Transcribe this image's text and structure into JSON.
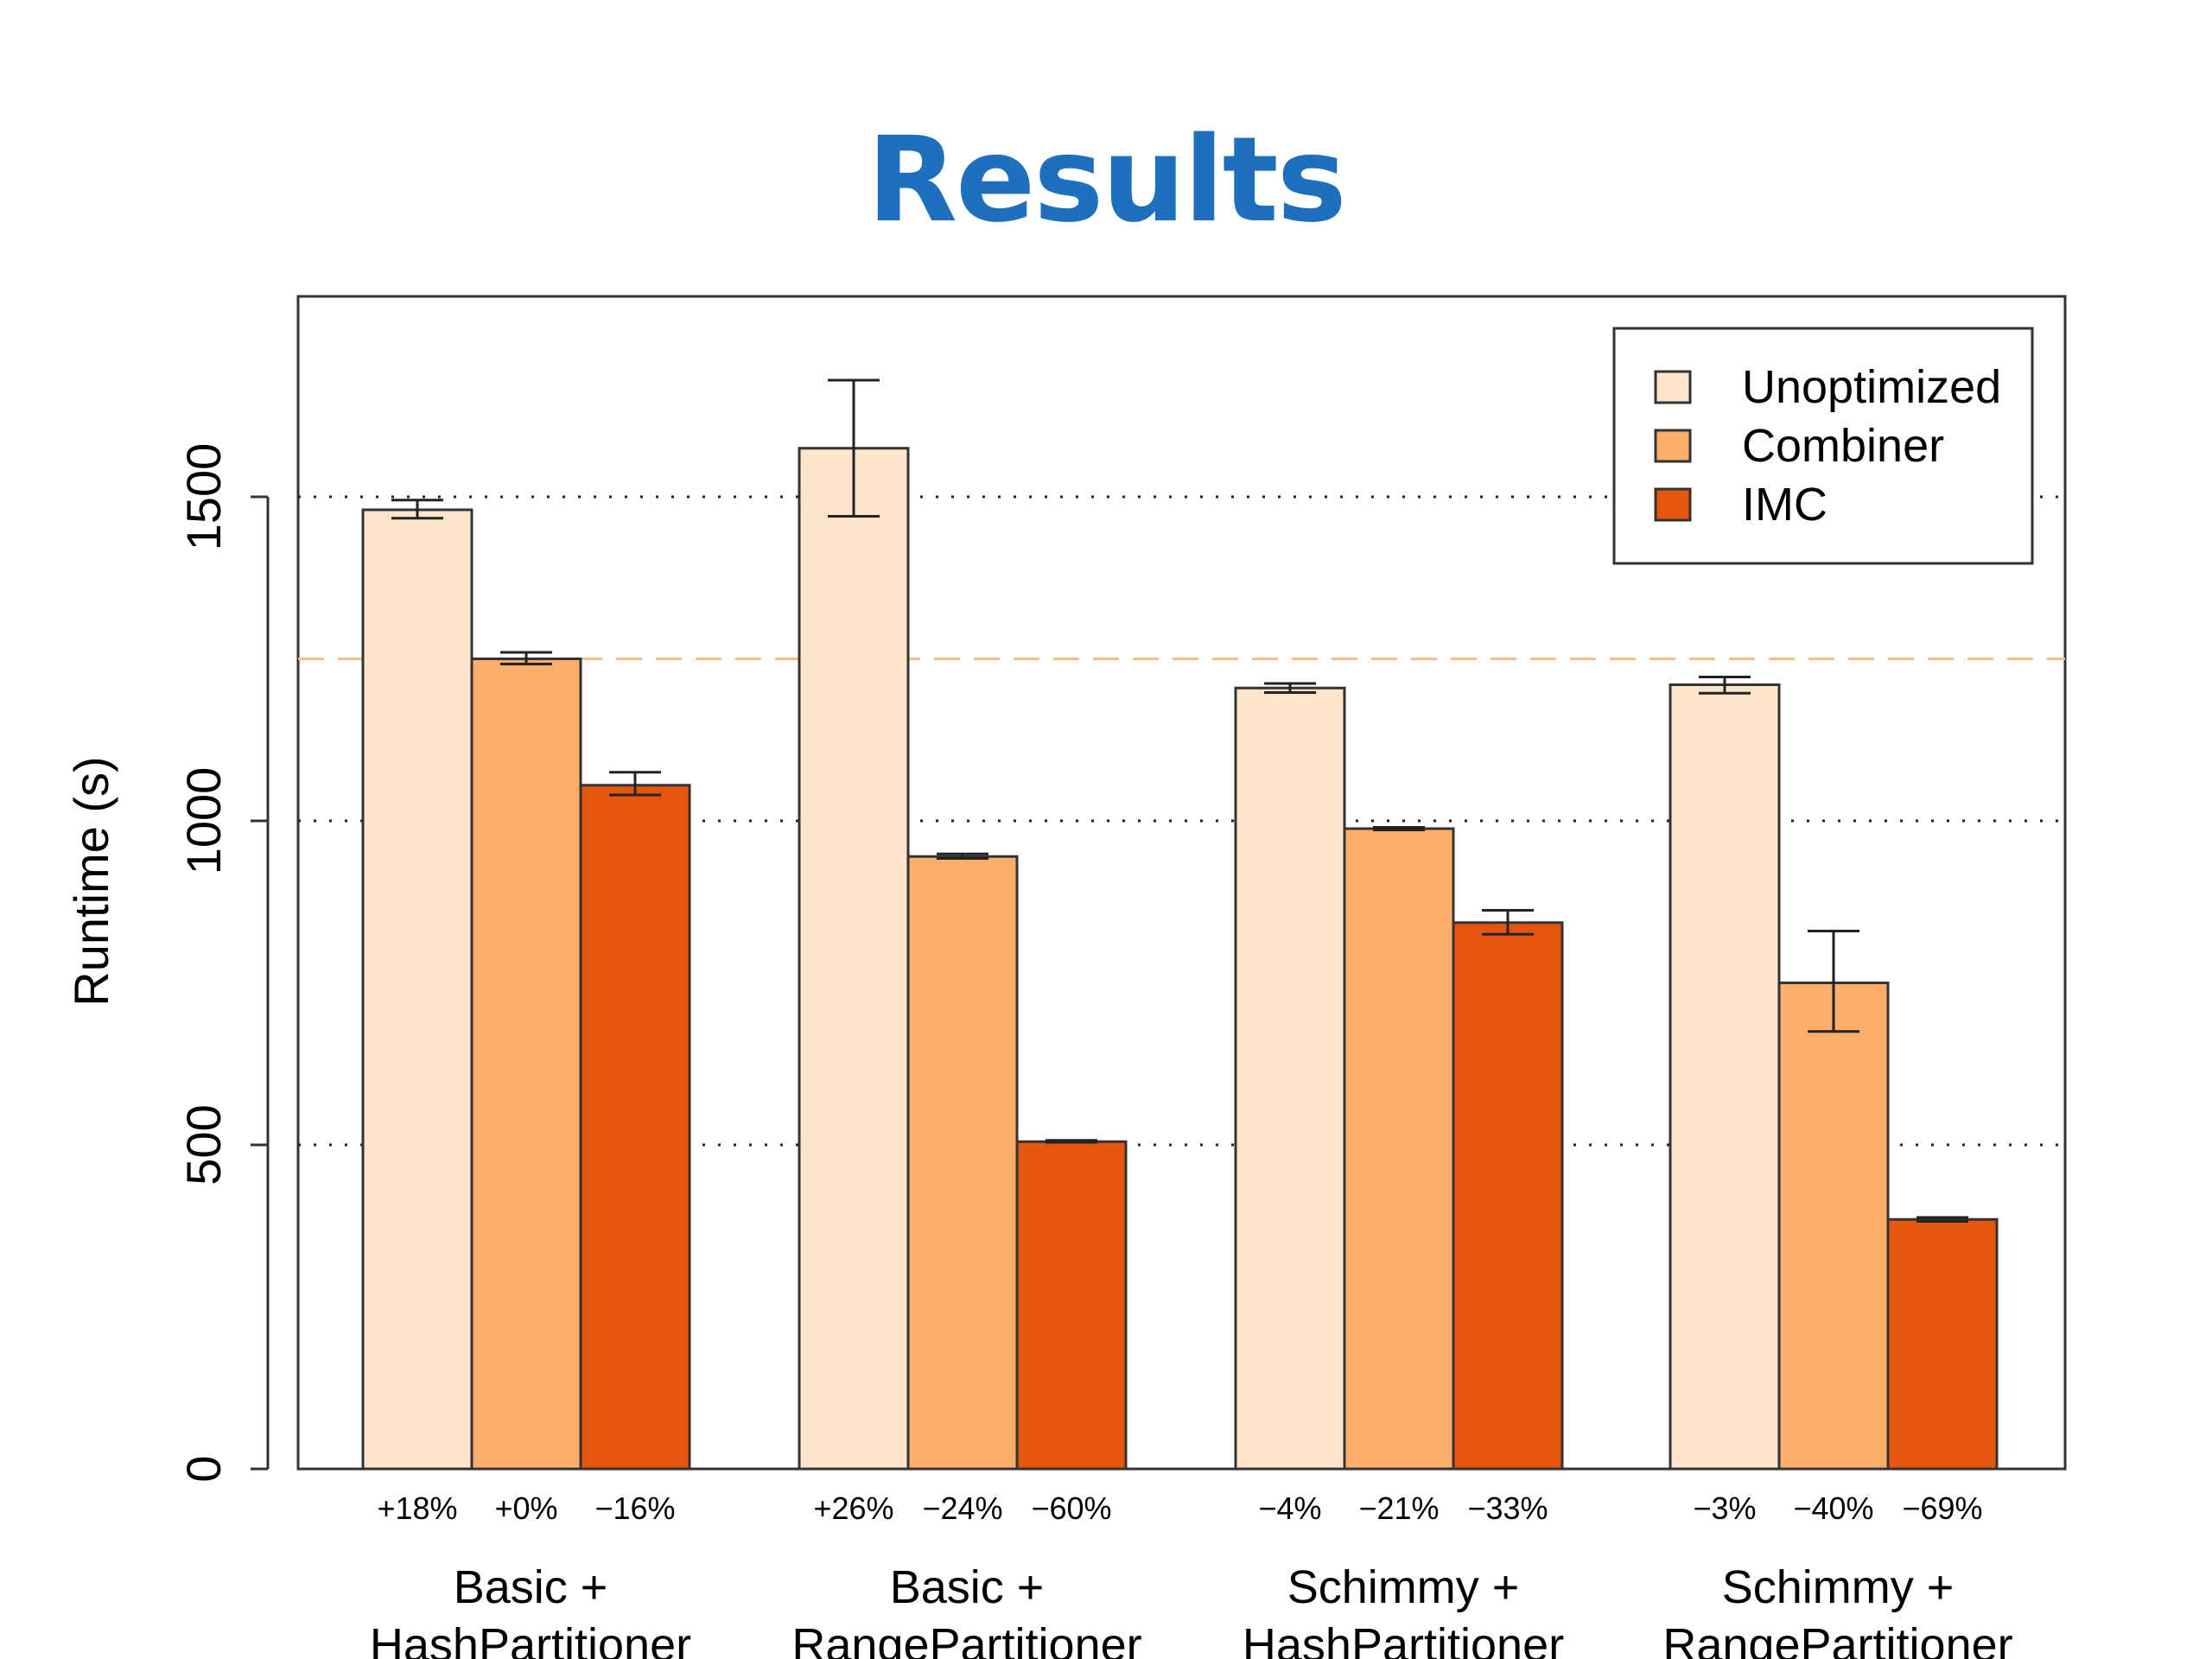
{
  "slide": {
    "title": "Results"
  },
  "chart_data": {
    "type": "bar",
    "title": "",
    "xlabel": "",
    "ylabel": "Runtime (s)",
    "ylim": [
      0,
      1800
    ],
    "yticks": [
      0,
      500,
      1000,
      1500
    ],
    "grid": "dotted horizontal at 500, 1000, 1500",
    "reference_line": {
      "value": 1250,
      "style": "dashed",
      "color": "#fdbe85"
    },
    "legend_position": "top-right",
    "categories": [
      [
        "Basic +",
        "HashPartitioner"
      ],
      [
        "Basic +",
        "RangePartitioner"
      ],
      [
        "Schimmy +",
        "HashPartitioner"
      ],
      [
        "Schimmy +",
        "RangePartitioner"
      ]
    ],
    "series": [
      {
        "name": "Unoptimized",
        "color": "#fde5cc",
        "values": [
          1480,
          1575,
          1205,
          1210
        ],
        "errors": [
          [
            1467,
            1495
          ],
          [
            1470,
            1680
          ],
          [
            1198,
            1212
          ],
          [
            1197,
            1222
          ]
        ],
        "labels": [
          "+18%",
          "+26%",
          "−4%",
          "−3%"
        ]
      },
      {
        "name": "Combiner",
        "color": "#fdae6b",
        "values": [
          1250,
          945,
          988,
          750
        ],
        "errors": [
          [
            1242,
            1260
          ],
          [
            942,
            949
          ],
          [
            986,
            990
          ],
          [
            675,
            830
          ]
        ],
        "labels": [
          "+0%",
          "−24%",
          "−21%",
          "−40%"
        ]
      },
      {
        "name": "IMC",
        "color": "#e6550d",
        "values": [
          1055,
          505,
          843,
          385
        ],
        "errors": [
          [
            1040,
            1075
          ],
          [
            504,
            507
          ],
          [
            825,
            862
          ],
          [
            382,
            388
          ]
        ],
        "labels": [
          "−16%",
          "−60%",
          "−33%",
          "−69%"
        ]
      }
    ]
  }
}
